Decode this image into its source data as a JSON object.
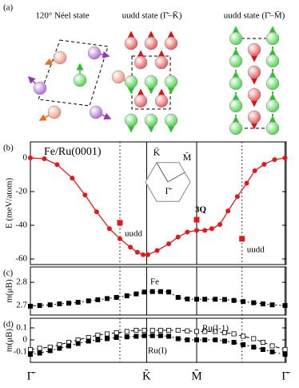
{
  "panel_a": {
    "label": "(a)",
    "titles": [
      "120° Néel state",
      "uudd state (Γ̄–K̄)",
      "uudd state (Γ̄–M̄)"
    ]
  },
  "chart_data": [
    {
      "type": "line",
      "panel_label": "(b)",
      "ylabel": "E (meV/atom)",
      "xlim": [
        0,
        2.2
      ],
      "xticks": [
        0,
        1,
        1.43,
        2.19
      ],
      "vlines": [
        0.77,
        1.82
      ],
      "ylim": [
        -63.3,
        9.5
      ],
      "yticks": [
        0,
        -20,
        -40,
        -60
      ],
      "series": [
        {
          "name": "Fe/Ru(0001)",
          "color": "#e8161b",
          "line_style": "solid",
          "marker": "circle",
          "x": [
            0,
            0.12,
            0.23,
            0.36,
            0.47,
            0.57,
            0.68,
            0.77,
            0.86,
            0.92,
            0.97,
            1.01,
            1.09,
            1.19,
            1.27,
            1.35,
            1.43,
            1.5,
            1.56,
            1.63,
            1.7,
            1.78,
            1.86,
            1.93,
            2.01,
            2.1,
            2.19
          ],
          "values": [
            0,
            -0.5,
            -4,
            -12,
            -22,
            -32,
            -42,
            -48,
            -53,
            -56,
            -57.5,
            -57.5,
            -55,
            -51,
            -47,
            -44,
            -43,
            -43,
            -42,
            -39.5,
            -31.5,
            -23,
            -15,
            -7.6,
            -3.8,
            -1,
            0
          ]
        }
      ],
      "points": {
        "color": "#e8161b",
        "x": [
          0.77,
          1.43,
          1.82
        ],
        "values": [
          -38.5,
          -36.7,
          -48
        ],
        "labels": [
          "uudd",
          "3Q",
          "uudd"
        ]
      },
      "inset": {
        "labels": [
          "K̄",
          "M̄",
          "Γ̄"
        ]
      }
    },
    {
      "type": "line",
      "panel_label": "(c)",
      "ylabel": "m(μB)",
      "xlim": [
        0,
        2.2
      ],
      "xticks": [
        0,
        1,
        1.43,
        2.19
      ],
      "vlines": [
        0.77,
        1.82
      ],
      "ylim": [
        2.659,
        2.866
      ],
      "yticks": [
        2.7,
        2.8
      ],
      "series": [
        {
          "name": "Fe",
          "color": "#000000",
          "line_style": "dotted",
          "marker": "square",
          "x": [
            0,
            0.08,
            0.17,
            0.25,
            0.33,
            0.41,
            0.5,
            0.58,
            0.66,
            0.74,
            0.83,
            0.91,
            0.98,
            1.05,
            1.12,
            1.19,
            1.27,
            1.35,
            1.43,
            1.5,
            1.59,
            1.67,
            1.75,
            1.83,
            1.92,
            2.0,
            2.08,
            2.19
          ],
          "values": [
            2.697,
            2.7,
            2.703,
            2.707,
            2.71,
            2.714,
            2.72,
            2.725,
            2.73,
            2.735,
            2.742,
            2.75,
            2.758,
            2.76,
            2.76,
            2.758,
            2.735,
            2.728,
            2.727,
            2.727,
            2.727,
            2.726,
            2.722,
            2.717,
            2.712,
            2.707,
            2.703,
            2.7
          ]
        }
      ]
    },
    {
      "type": "line",
      "panel_label": "(d)",
      "ylabel": "m(μB)",
      "xlim": [
        0,
        2.2
      ],
      "xticks": [
        {
          "value": 0,
          "label": "Γ̄"
        },
        {
          "value": 1,
          "label": "K̄"
        },
        {
          "value": 1.43,
          "label": "M̄"
        },
        {
          "value": 2.19,
          "label": "Γ̄"
        }
      ],
      "vlines": [
        0.77,
        1.82
      ],
      "ylim": [
        -0.187,
        0.18
      ],
      "yticks": [
        0.1,
        0,
        -0.1
      ],
      "series": [
        {
          "name": "Ru(I-1)",
          "color": "#000000",
          "line_style": "dashed",
          "marker": "open-square",
          "x": [
            0,
            0.08,
            0.17,
            0.25,
            0.33,
            0.41,
            0.5,
            0.58,
            0.66,
            0.74,
            0.83,
            0.91,
            0.98,
            1.05,
            1.12,
            1.19,
            1.27,
            1.35,
            1.43,
            1.5,
            1.59,
            1.67,
            1.75,
            1.83,
            1.92,
            2.0,
            2.08,
            2.19
          ],
          "values": [
            -0.08,
            -0.07,
            -0.06,
            -0.04,
            -0.02,
            0,
            0.02,
            0.04,
            0.05,
            0.06,
            0.07,
            0.08,
            0.08,
            0.08,
            0.08,
            0.08,
            0.08,
            0.075,
            0.07,
            0.07,
            0.07,
            0.06,
            0.05,
            0.03,
            0.01,
            -0.02,
            -0.05,
            -0.08
          ]
        },
        {
          "name": "Ru(I)",
          "color": "#000000",
          "line_style": "dotted",
          "marker": "square",
          "x": [
            0,
            0.08,
            0.17,
            0.25,
            0.33,
            0.41,
            0.5,
            0.58,
            0.66,
            0.74,
            0.83,
            0.91,
            0.98,
            1.05,
            1.12,
            1.19,
            1.27,
            1.35,
            1.43,
            1.5,
            1.59,
            1.67,
            1.75,
            1.83,
            1.92,
            2.0,
            2.08,
            2.19
          ],
          "values": [
            -0.12,
            -0.11,
            -0.09,
            -0.07,
            -0.05,
            -0.03,
            -0.01,
            0,
            0.01,
            0.02,
            0.025,
            0.03,
            0.035,
            0.035,
            0.035,
            0.03,
            0.01,
            0,
            0,
            0,
            0,
            -0.01,
            -0.02,
            -0.04,
            -0.06,
            -0.08,
            -0.1,
            -0.12
          ]
        }
      ]
    }
  ]
}
